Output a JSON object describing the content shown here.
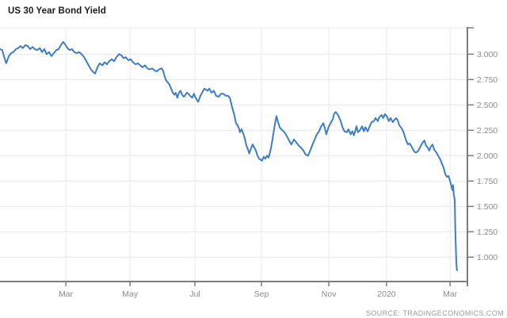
{
  "title": "US 30 Year Bond Yield",
  "source": "SOURCE: TRADINGECONOMICS.COM",
  "colors": {
    "line": "#3e7dc3",
    "grid": "#e8e8e8",
    "axis": "#7d7d7d",
    "tick_label": "#8c8c8c",
    "title": "#1a1a1a",
    "source": "#9a9a9a",
    "background": "#ffffff"
  },
  "chart_data": {
    "type": "line",
    "title": "US 30 Year Bond Yield",
    "xlabel": "",
    "ylabel": "",
    "x_unit": "months since 2019-01-01",
    "y_unit": "percent yield",
    "xlim": [
      0,
      14.34
    ],
    "ylim": [
      0.76,
      3.26
    ],
    "grid": true,
    "legend": false,
    "x_ticks": [
      {
        "t": 2.02,
        "label": "Mar"
      },
      {
        "t": 3.99,
        "label": "May"
      },
      {
        "t": 5.98,
        "label": "Jul"
      },
      {
        "t": 8.02,
        "label": "Sep"
      },
      {
        "t": 10.09,
        "label": "Nov"
      },
      {
        "t": 11.86,
        "label": "2020"
      },
      {
        "t": 13.81,
        "label": "Mar"
      }
    ],
    "y_ticks": [
      {
        "v": 1.0,
        "label": "1.000"
      },
      {
        "v": 1.25,
        "label": "1.250"
      },
      {
        "v": 1.5,
        "label": "1.500"
      },
      {
        "v": 1.75,
        "label": "1.750"
      },
      {
        "v": 2.0,
        "label": "2.000"
      },
      {
        "v": 2.25,
        "label": "2.250"
      },
      {
        "v": 2.5,
        "label": "2.500"
      },
      {
        "v": 2.75,
        "label": "2.750"
      },
      {
        "v": 3.0,
        "label": "3.000"
      }
    ],
    "series": [
      {
        "name": "US 30 Year Bond Yield",
        "points": [
          [
            0,
            3.05
          ],
          [
            0.07,
            3.04
          ],
          [
            0.12,
            2.98
          ],
          [
            0.19,
            2.91
          ],
          [
            0.27,
            2.98
          ],
          [
            0.34,
            3.01
          ],
          [
            0.41,
            3.02
          ],
          [
            0.49,
            3.05
          ],
          [
            0.56,
            3.06
          ],
          [
            0.63,
            3.08
          ],
          [
            0.7,
            3.06
          ],
          [
            0.78,
            3.09
          ],
          [
            0.85,
            3.08
          ],
          [
            0.92,
            3.05
          ],
          [
            1.0,
            3.07
          ],
          [
            1.07,
            3.05
          ],
          [
            1.14,
            3.04
          ],
          [
            1.22,
            3.06
          ],
          [
            1.29,
            3.02
          ],
          [
            1.36,
            3.05
          ],
          [
            1.43,
            3.0
          ],
          [
            1.51,
            3.02
          ],
          [
            1.58,
            2.98
          ],
          [
            1.65,
            3.01
          ],
          [
            1.73,
            3.04
          ],
          [
            1.8,
            3.05
          ],
          [
            1.87,
            3.09
          ],
          [
            1.94,
            3.12
          ],
          [
            1.99,
            3.1
          ],
          [
            2.07,
            3.06
          ],
          [
            2.14,
            3.04
          ],
          [
            2.21,
            3.05
          ],
          [
            2.28,
            3.02
          ],
          [
            2.36,
            3.01
          ],
          [
            2.43,
            3.02
          ],
          [
            2.5,
            3.0
          ],
          [
            2.58,
            2.97
          ],
          [
            2.65,
            2.93
          ],
          [
            2.72,
            2.89
          ],
          [
            2.79,
            2.85
          ],
          [
            2.87,
            2.82
          ],
          [
            2.92,
            2.81
          ],
          [
            2.99,
            2.87
          ],
          [
            3.06,
            2.91
          ],
          [
            3.14,
            2.89
          ],
          [
            3.21,
            2.92
          ],
          [
            3.28,
            2.9
          ],
          [
            3.35,
            2.93
          ],
          [
            3.43,
            2.95
          ],
          [
            3.5,
            2.93
          ],
          [
            3.57,
            2.97
          ],
          [
            3.65,
            3.0
          ],
          [
            3.72,
            2.99
          ],
          [
            3.79,
            2.96
          ],
          [
            3.86,
            2.97
          ],
          [
            3.94,
            2.94
          ],
          [
            4.01,
            2.95
          ],
          [
            4.08,
            2.92
          ],
          [
            4.16,
            2.9
          ],
          [
            4.23,
            2.91
          ],
          [
            4.3,
            2.89
          ],
          [
            4.37,
            2.87
          ],
          [
            4.45,
            2.89
          ],
          [
            4.52,
            2.86
          ],
          [
            4.59,
            2.85
          ],
          [
            4.67,
            2.86
          ],
          [
            4.74,
            2.84
          ],
          [
            4.81,
            2.83
          ],
          [
            4.88,
            2.85
          ],
          [
            4.96,
            2.86
          ],
          [
            5.01,
            2.83
          ],
          [
            5.05,
            2.78
          ],
          [
            5.1,
            2.74
          ],
          [
            5.15,
            2.72
          ],
          [
            5.2,
            2.7
          ],
          [
            5.25,
            2.66
          ],
          [
            5.3,
            2.62
          ],
          [
            5.35,
            2.6
          ],
          [
            5.39,
            2.62
          ],
          [
            5.44,
            2.57
          ],
          [
            5.49,
            2.62
          ],
          [
            5.54,
            2.64
          ],
          [
            5.59,
            2.6
          ],
          [
            5.64,
            2.58
          ],
          [
            5.69,
            2.6
          ],
          [
            5.73,
            2.62
          ],
          [
            5.78,
            2.61
          ],
          [
            5.83,
            2.59
          ],
          [
            5.9,
            2.57
          ],
          [
            5.95,
            2.61
          ],
          [
            6.0,
            2.57
          ],
          [
            6.08,
            2.53
          ],
          [
            6.15,
            2.59
          ],
          [
            6.2,
            2.62
          ],
          [
            6.27,
            2.66
          ],
          [
            6.37,
            2.64
          ],
          [
            6.42,
            2.66
          ],
          [
            6.49,
            2.62
          ],
          [
            6.56,
            2.64
          ],
          [
            6.63,
            2.59
          ],
          [
            6.71,
            2.58
          ],
          [
            6.78,
            2.61
          ],
          [
            6.85,
            2.61
          ],
          [
            6.93,
            2.59
          ],
          [
            7.0,
            2.59
          ],
          [
            7.05,
            2.57
          ],
          [
            7.12,
            2.48
          ],
          [
            7.19,
            2.4
          ],
          [
            7.24,
            2.32
          ],
          [
            7.29,
            2.3
          ],
          [
            7.34,
            2.26
          ],
          [
            7.36,
            2.23
          ],
          [
            7.41,
            2.26
          ],
          [
            7.46,
            2.22
          ],
          [
            7.51,
            2.17
          ],
          [
            7.56,
            2.1
          ],
          [
            7.61,
            2.06
          ],
          [
            7.65,
            2.02
          ],
          [
            7.7,
            2.07
          ],
          [
            7.75,
            2.11
          ],
          [
            7.8,
            2.08
          ],
          [
            7.85,
            2.05
          ],
          [
            7.9,
            2.0
          ],
          [
            7.95,
            1.97
          ],
          [
            8.0,
            1.96
          ],
          [
            8.04,
            1.95
          ],
          [
            8.09,
            1.99
          ],
          [
            8.14,
            1.97
          ],
          [
            8.19,
            2.0
          ],
          [
            8.24,
            1.98
          ],
          [
            8.29,
            2.04
          ],
          [
            8.34,
            2.12
          ],
          [
            8.38,
            2.2
          ],
          [
            8.43,
            2.3
          ],
          [
            8.48,
            2.39
          ],
          [
            8.53,
            2.33
          ],
          [
            8.58,
            2.28
          ],
          [
            8.63,
            2.26
          ],
          [
            8.7,
            2.24
          ],
          [
            8.75,
            2.22
          ],
          [
            8.82,
            2.18
          ],
          [
            8.87,
            2.15
          ],
          [
            8.94,
            2.11
          ],
          [
            9.02,
            2.16
          ],
          [
            9.09,
            2.13
          ],
          [
            9.16,
            2.1
          ],
          [
            9.23,
            2.08
          ],
          [
            9.31,
            2.05
          ],
          [
            9.38,
            2.01
          ],
          [
            9.45,
            2.0
          ],
          [
            9.53,
            2.06
          ],
          [
            9.6,
            2.12
          ],
          [
            9.67,
            2.17
          ],
          [
            9.72,
            2.21
          ],
          [
            9.79,
            2.24
          ],
          [
            9.84,
            2.28
          ],
          [
            9.92,
            2.32
          ],
          [
            9.96,
            2.28
          ],
          [
            10.01,
            2.21
          ],
          [
            10.08,
            2.28
          ],
          [
            10.16,
            2.33
          ],
          [
            10.21,
            2.36
          ],
          [
            10.25,
            2.41
          ],
          [
            10.3,
            2.43
          ],
          [
            10.35,
            2.41
          ],
          [
            10.4,
            2.38
          ],
          [
            10.45,
            2.34
          ],
          [
            10.52,
            2.27
          ],
          [
            10.57,
            2.24
          ],
          [
            10.64,
            2.23
          ],
          [
            10.69,
            2.26
          ],
          [
            10.76,
            2.21
          ],
          [
            10.81,
            2.24
          ],
          [
            10.86,
            2.2
          ],
          [
            10.94,
            2.29
          ],
          [
            10.98,
            2.23
          ],
          [
            11.04,
            2.25
          ],
          [
            11.11,
            2.29
          ],
          [
            11.16,
            2.24
          ],
          [
            11.21,
            2.28
          ],
          [
            11.28,
            2.24
          ],
          [
            11.33,
            2.28
          ],
          [
            11.4,
            2.33
          ],
          [
            11.47,
            2.34
          ],
          [
            11.52,
            2.37
          ],
          [
            11.59,
            2.34
          ],
          [
            11.64,
            2.38
          ],
          [
            11.71,
            2.4
          ],
          [
            11.76,
            2.37
          ],
          [
            11.81,
            2.41
          ],
          [
            11.88,
            2.38
          ],
          [
            11.93,
            2.34
          ],
          [
            11.98,
            2.37
          ],
          [
            12.05,
            2.33
          ],
          [
            12.1,
            2.35
          ],
          [
            12.15,
            2.37
          ],
          [
            12.2,
            2.35
          ],
          [
            12.25,
            2.3
          ],
          [
            12.32,
            2.27
          ],
          [
            12.37,
            2.24
          ],
          [
            12.42,
            2.19
          ],
          [
            12.47,
            2.14
          ],
          [
            12.52,
            2.11
          ],
          [
            12.56,
            2.12
          ],
          [
            12.61,
            2.1
          ],
          [
            12.66,
            2.07
          ],
          [
            12.71,
            2.04
          ],
          [
            12.76,
            2.03
          ],
          [
            12.81,
            2.04
          ],
          [
            12.85,
            2.06
          ],
          [
            12.9,
            2.09
          ],
          [
            12.95,
            2.12
          ],
          [
            13.02,
            2.15
          ],
          [
            13.07,
            2.1
          ],
          [
            13.12,
            2.08
          ],
          [
            13.17,
            2.05
          ],
          [
            13.22,
            2.09
          ],
          [
            13.27,
            2.11
          ],
          [
            13.32,
            2.06
          ],
          [
            13.39,
            2.03
          ],
          [
            13.46,
            1.99
          ],
          [
            13.51,
            1.96
          ],
          [
            13.56,
            1.92
          ],
          [
            13.61,
            1.88
          ],
          [
            13.66,
            1.82
          ],
          [
            13.71,
            1.79
          ],
          [
            13.76,
            1.8
          ],
          [
            13.8,
            1.76
          ],
          [
            13.85,
            1.7
          ],
          [
            13.88,
            1.66
          ],
          [
            13.9,
            1.71
          ],
          [
            13.92,
            1.63
          ],
          [
            13.95,
            1.56
          ],
          [
            13.97,
            1.25
          ],
          [
            14.0,
            0.95
          ],
          [
            14.02,
            0.87
          ]
        ]
      }
    ]
  }
}
